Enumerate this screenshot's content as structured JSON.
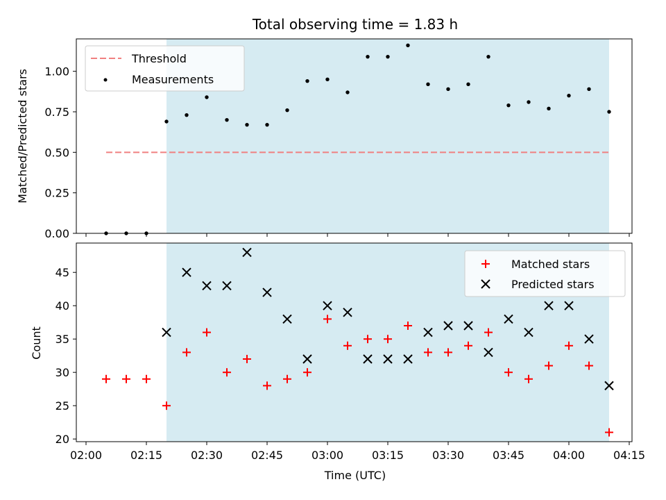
{
  "chart_data": [
    {
      "type": "scatter",
      "title": "Total observing time = 1.83 h",
      "xlabel": "",
      "ylabel": "Matched/Predicted stars",
      "xlim": [
        "02:00",
        "04:15"
      ],
      "ylim": [
        0,
        1.2
      ],
      "y_ticks": [
        "0.00",
        "0.25",
        "0.50",
        "0.75",
        "1.00"
      ],
      "shaded_region": {
        "from": "02:20",
        "to": "04:10",
        "color": "#add8e6"
      },
      "x": [
        "02:05",
        "02:10",
        "02:15",
        "02:20",
        "02:25",
        "02:30",
        "02:35",
        "02:40",
        "02:45",
        "02:50",
        "02:55",
        "03:00",
        "03:05",
        "03:10",
        "03:15",
        "03:20",
        "03:25",
        "03:30",
        "03:35",
        "03:40",
        "03:45",
        "03:50",
        "03:55",
        "04:00",
        "04:05",
        "04:10"
      ],
      "series": [
        {
          "name": "Threshold",
          "kind": "dashed-line",
          "color": "#f08080",
          "x": [
            "02:05",
            "04:10"
          ],
          "values": [
            0.5,
            0.5
          ]
        },
        {
          "name": "Measurements",
          "kind": "points",
          "color": "#000000",
          "values": [
            0.0,
            0.0,
            0.0,
            0.69,
            0.73,
            0.84,
            0.7,
            0.67,
            0.67,
            0.76,
            0.94,
            0.95,
            0.87,
            1.09,
            1.09,
            1.16,
            0.92,
            0.89,
            0.92,
            1.09,
            0.79,
            0.81,
            0.77,
            0.85,
            0.89,
            0.75
          ]
        }
      ],
      "legend": {
        "position": "top-left",
        "entries": [
          "Threshold",
          "Measurements"
        ]
      }
    },
    {
      "type": "scatter",
      "title": "",
      "xlabel": "Time (UTC)",
      "ylabel": "Count",
      "xlim": [
        "02:00",
        "04:15"
      ],
      "ylim": [
        20,
        49
      ],
      "x_ticks": [
        "02:00",
        "02:15",
        "02:30",
        "02:45",
        "03:00",
        "03:15",
        "03:30",
        "03:45",
        "04:00",
        "04:15"
      ],
      "y_ticks": [
        "20",
        "25",
        "30",
        "35",
        "40",
        "45"
      ],
      "shaded_region": {
        "from": "02:20",
        "to": "04:10",
        "color": "#add8e6"
      },
      "series": [
        {
          "name": "Matched stars",
          "marker": "plus",
          "color": "#ff0000",
          "x": [
            "02:05",
            "02:10",
            "02:15",
            "02:20",
            "02:25",
            "02:30",
            "02:35",
            "02:40",
            "02:45",
            "02:50",
            "02:55",
            "03:00",
            "03:05",
            "03:10",
            "03:15",
            "03:20",
            "03:25",
            "03:30",
            "03:35",
            "03:40",
            "03:45",
            "03:50",
            "03:55",
            "04:00",
            "04:05",
            "04:10"
          ],
          "values": [
            29,
            29,
            29,
            25,
            33,
            36,
            30,
            32,
            28,
            29,
            30,
            38,
            34,
            35,
            35,
            37,
            33,
            33,
            34,
            36,
            30,
            29,
            31,
            34,
            31,
            21
          ]
        },
        {
          "name": "Predicted stars",
          "marker": "x",
          "color": "#000000",
          "x": [
            "02:20",
            "02:25",
            "02:30",
            "02:35",
            "02:40",
            "02:45",
            "02:50",
            "02:55",
            "03:00",
            "03:05",
            "03:10",
            "03:15",
            "03:20",
            "03:25",
            "03:30",
            "03:35",
            "03:40",
            "03:45",
            "03:50",
            "03:55",
            "04:00",
            "04:05",
            "04:10"
          ],
          "values": [
            36,
            45,
            43,
            43,
            48,
            42,
            38,
            32,
            40,
            39,
            32,
            32,
            32,
            36,
            37,
            37,
            33,
            38,
            36,
            40,
            40,
            35,
            28
          ]
        }
      ],
      "legend": {
        "position": "top-right",
        "entries": [
          "Matched stars",
          "Predicted stars"
        ]
      }
    }
  ]
}
